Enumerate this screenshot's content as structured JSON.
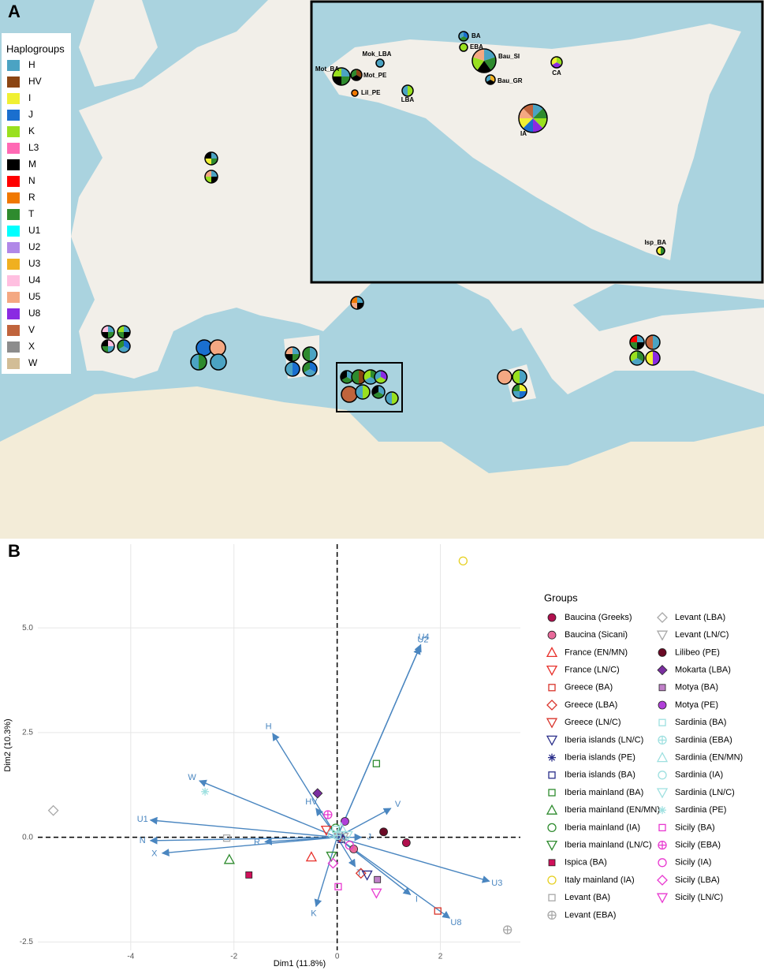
{
  "panel_a": {
    "label": "A",
    "legend": {
      "title": "Haplogroups",
      "items": [
        {
          "name": "H",
          "color": "#4ba3c3"
        },
        {
          "name": "HV",
          "color": "#8b4513"
        },
        {
          "name": "I",
          "color": "#f0f033"
        },
        {
          "name": "J",
          "color": "#1a6fcf"
        },
        {
          "name": "K",
          "color": "#99e01f"
        },
        {
          "name": "L3",
          "color": "#ff69b4"
        },
        {
          "name": "M",
          "color": "#000000"
        },
        {
          "name": "N",
          "color": "#ff0000"
        },
        {
          "name": "R",
          "color": "#f07800"
        },
        {
          "name": "T",
          "color": "#2e8b2e"
        },
        {
          "name": "U1",
          "color": "#00ffff"
        },
        {
          "name": "U2",
          "color": "#b088e8"
        },
        {
          "name": "U3",
          "color": "#f0b020"
        },
        {
          "name": "U4",
          "color": "#ffbfe0"
        },
        {
          "name": "U5",
          "color": "#f4a882"
        },
        {
          "name": "U8",
          "color": "#8a2be2"
        },
        {
          "name": "V",
          "color": "#c0643c"
        },
        {
          "name": "X",
          "color": "#8c8c8c"
        },
        {
          "name": "W",
          "color": "#d2bd96"
        }
      ]
    },
    "inset_sites": [
      "BA",
      "EBA",
      "Mok_LBA",
      "Bau_SI",
      "Mot_BA",
      "Mot_PE",
      "Bau_GR",
      "Lil_PE",
      "LBA",
      "CA",
      "IA",
      "Isp_BA"
    ]
  },
  "chart_data": {
    "type": "scatter",
    "label": "B",
    "x_label": "Dim1 (11.8%)",
    "y_label": "Dim2 (10.3%)",
    "xlim": [
      -5.8,
      3.55
    ],
    "ylim": [
      -2.7,
      7.0
    ],
    "xticks": [
      -4,
      -2,
      0,
      2
    ],
    "yticks": [
      -2.5,
      {
        "value": 0,
        "label": "0.0"
      },
      2.5,
      {
        "value": 5,
        "label": "5.0"
      }
    ],
    "grid": true,
    "legend_title": "Groups",
    "arrow_color": "#4a86c0",
    "arrows": {
      "names": [
        "U4",
        "U2",
        "H",
        "W",
        "U1",
        "N",
        "X",
        "R",
        "HV",
        "V",
        "J",
        "U3",
        "I",
        "U8",
        "K",
        "T"
      ],
      "x": [
        1.62,
        1.6,
        -1.25,
        -2.67,
        -3.62,
        -3.62,
        -3.39,
        -1.4,
        -0.41,
        1.04,
        0.47,
        2.95,
        1.42,
        2.18,
        -0.41,
        0.35
      ],
      "y": [
        4.6,
        4.54,
        2.48,
        1.35,
        0.41,
        -0.08,
        -0.38,
        -0.11,
        0.69,
        0.69,
        0.0,
        -1.05,
        -1.37,
        -1.93,
        -1.65,
        -0.7
      ]
    },
    "series": [
      {
        "name": "Baucina (Greeks)",
        "color": "#b0104e",
        "marker": "circle-filled",
        "x": 1.34,
        "y": -0.13
      },
      {
        "name": "Baucina (Sicani)",
        "color": "#e86a9a",
        "marker": "circle-filled",
        "x": 0.32,
        "y": -0.28
      },
      {
        "name": "France (EN/MN)",
        "color": "#e8302a",
        "marker": "triangle",
        "x": -0.5,
        "y": -0.47
      },
      {
        "name": "France (LN/C)",
        "color": "#e8302a",
        "marker": "triangle-down",
        "x": -0.21,
        "y": 0.17
      },
      {
        "name": "Greece (BA)",
        "color": "#d9342b",
        "marker": "square",
        "x": 1.95,
        "y": -1.76
      },
      {
        "name": "Greece (LBA)",
        "color": "#d9342b",
        "marker": "diamond",
        "x": 0.46,
        "y": -0.86
      },
      {
        "name": "Greece (LN/C)",
        "color": "#d9342b",
        "marker": "triangle-down",
        "x": 0.05,
        "y": 0.0
      },
      {
        "name": "Iberia islands (LN/C)",
        "color": "#2a2e8a",
        "marker": "triangle-down",
        "x": 0.58,
        "y": -0.9
      },
      {
        "name": "Iberia islands (PE)",
        "color": "#2a2e8a",
        "marker": "asterisk",
        "x": 0.05,
        "y": 0.05
      },
      {
        "name": "Iberia islands (BA)",
        "color": "#2a2e8a",
        "marker": "square",
        "x": 0.08,
        "y": -0.05
      },
      {
        "name": "Iberia mainland (BA)",
        "color": "#2e8b2e",
        "marker": "square",
        "x": 0.76,
        "y": 1.76
      },
      {
        "name": "Iberia mainland (EN/MN)",
        "color": "#2e8b2e",
        "marker": "triangle",
        "x": -2.09,
        "y": -0.53
      },
      {
        "name": "Iberia mainland (IA)",
        "color": "#2e8b2e",
        "marker": "circle",
        "x": -0.03,
        "y": 0.22
      },
      {
        "name": "Iberia mainland (LN/C)",
        "color": "#2e8b2e",
        "marker": "triangle-down",
        "x": -0.11,
        "y": -0.45
      },
      {
        "name": "Ispica (BA)",
        "color": "#d0105a",
        "marker": "square-filled",
        "x": -1.71,
        "y": -0.9
      },
      {
        "name": "Italy mainland (IA)",
        "color": "#e6d020",
        "marker": "circle",
        "x": 2.44,
        "y": 6.6
      },
      {
        "name": "Levant (BA)",
        "color": "#a8a8a8",
        "marker": "square",
        "x": -2.14,
        "y": -0.02
      },
      {
        "name": "Levant (EBA)",
        "color": "#a8a8a8",
        "marker": "circle-plus",
        "x": 3.3,
        "y": -2.21
      },
      {
        "name": "Levant (LBA)",
        "color": "#a8a8a8",
        "marker": "diamond",
        "x": -5.5,
        "y": 0.64
      },
      {
        "name": "Levant (LN/C)",
        "color": "#a8a8a8",
        "marker": "triangle-down",
        "x": 0.12,
        "y": 0.0
      },
      {
        "name": "Lilibeo (PE)",
        "color": "#6a0a25",
        "marker": "circle-filled",
        "x": 0.9,
        "y": 0.13
      },
      {
        "name": "Mokarta (LBA)",
        "color": "#7a2fa0",
        "marker": "diamond-filled",
        "x": -0.38,
        "y": 1.05
      },
      {
        "name": "Motya (BA)",
        "color": "#c080c8",
        "marker": "square-filled",
        "x": 0.78,
        "y": -1.01
      },
      {
        "name": "Motya (PE)",
        "color": "#b040d8",
        "marker": "circle-filled",
        "x": 0.15,
        "y": 0.38
      },
      {
        "name": "Sardinia (BA)",
        "color": "#9ee0e0",
        "marker": "square",
        "x": -0.03,
        "y": 0.19
      },
      {
        "name": "Sardinia (EBA)",
        "color": "#9ee0e0",
        "marker": "circle-plus",
        "x": 0.0,
        "y": 0.04
      },
      {
        "name": "Sardinia (EN/MN)",
        "color": "#9ee0e0",
        "marker": "triangle",
        "x": 0.08,
        "y": 0.23
      },
      {
        "name": "Sardinia (IA)",
        "color": "#9ee0e0",
        "marker": "circle",
        "x": -0.1,
        "y": 0.08
      },
      {
        "name": "Sardinia (LN/C)",
        "color": "#9ee0e0",
        "marker": "triangle-down",
        "x": 0.2,
        "y": 0.04
      },
      {
        "name": "Sardinia (PE)",
        "color": "#9ee0e0",
        "marker": "asterisk",
        "x": -2.56,
        "y": 1.09
      },
      {
        "name": "Sicily (BA)",
        "color": "#e838d0",
        "marker": "square",
        "x": 0.02,
        "y": -1.18
      },
      {
        "name": "Sicily (EBA)",
        "color": "#e838d0",
        "marker": "circle-plus",
        "x": -0.18,
        "y": 0.54
      },
      {
        "name": "Sicily (IA)",
        "color": "#e838d0",
        "marker": "circle",
        "x": 0.24,
        "y": -0.19
      },
      {
        "name": "Sicily (LBA)",
        "color": "#e838d0",
        "marker": "diamond",
        "x": -0.08,
        "y": -0.62
      },
      {
        "name": "Sicily (LN/C)",
        "color": "#e838d0",
        "marker": "triangle-down",
        "x": 0.76,
        "y": -1.33
      }
    ]
  }
}
